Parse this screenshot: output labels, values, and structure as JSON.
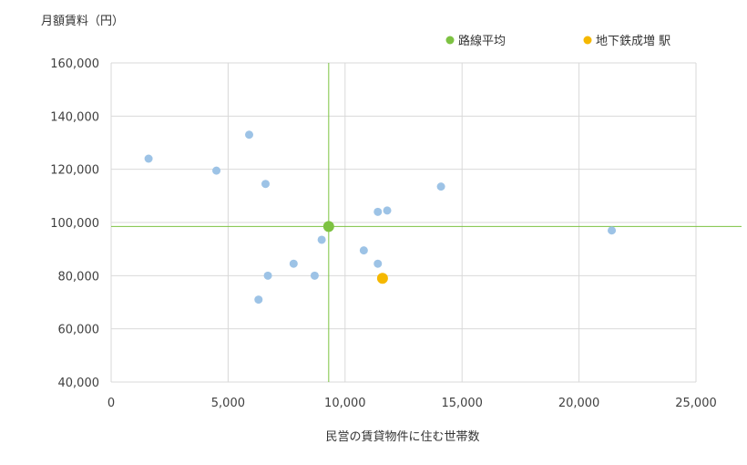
{
  "chart_data": {
    "type": "scatter",
    "title": "",
    "ylabel": "月額賃料（円）",
    "xlabel": "民営の賃貸物件に住む世帯数",
    "xlim": [
      0,
      25000
    ],
    "ylim": [
      40000,
      160000
    ],
    "x_ticks": [
      0,
      5000,
      10000,
      15000,
      20000,
      25000
    ],
    "y_ticks": [
      40000,
      60000,
      80000,
      100000,
      120000,
      140000,
      160000
    ],
    "x_tick_labels": [
      "0",
      "5,000",
      "10,000",
      "15,000",
      "20,000",
      "25,000"
    ],
    "y_tick_labels": [
      "40,000",
      "60,000",
      "80,000",
      "100,000",
      "120,000",
      "140,000",
      "160,000"
    ],
    "grid": true,
    "legend_position": "top-right",
    "colors": {
      "others": "#9dc3e6",
      "route_average": "#7dc242",
      "highlight": "#f5b800",
      "grid": "#d9d9d9",
      "crosshair": "#7dc242"
    },
    "legend": [
      {
        "label": "路線平均",
        "color": "#7dc242"
      },
      {
        "label": "地下鉄成増 駅",
        "color": "#f5b800"
      }
    ],
    "series": [
      {
        "role": "others",
        "points": [
          {
            "x": 1600,
            "y": 124000
          },
          {
            "x": 4500,
            "y": 119500
          },
          {
            "x": 5900,
            "y": 133000
          },
          {
            "x": 6600,
            "y": 114500
          },
          {
            "x": 6300,
            "y": 71000
          },
          {
            "x": 6700,
            "y": 80000
          },
          {
            "x": 7800,
            "y": 84500
          },
          {
            "x": 8700,
            "y": 80000
          },
          {
            "x": 9000,
            "y": 93500
          },
          {
            "x": 10800,
            "y": 89500
          },
          {
            "x": 11400,
            "y": 84500
          },
          {
            "x": 11400,
            "y": 104000
          },
          {
            "x": 11800,
            "y": 104500
          },
          {
            "x": 14100,
            "y": 113500
          },
          {
            "x": 21400,
            "y": 97000
          }
        ]
      },
      {
        "role": "route_average",
        "name": "路線平均",
        "points": [
          {
            "x": 9300,
            "y": 98500
          }
        ]
      },
      {
        "role": "highlight",
        "name": "地下鉄成増 駅",
        "points": [
          {
            "x": 11600,
            "y": 79000
          }
        ]
      }
    ]
  }
}
